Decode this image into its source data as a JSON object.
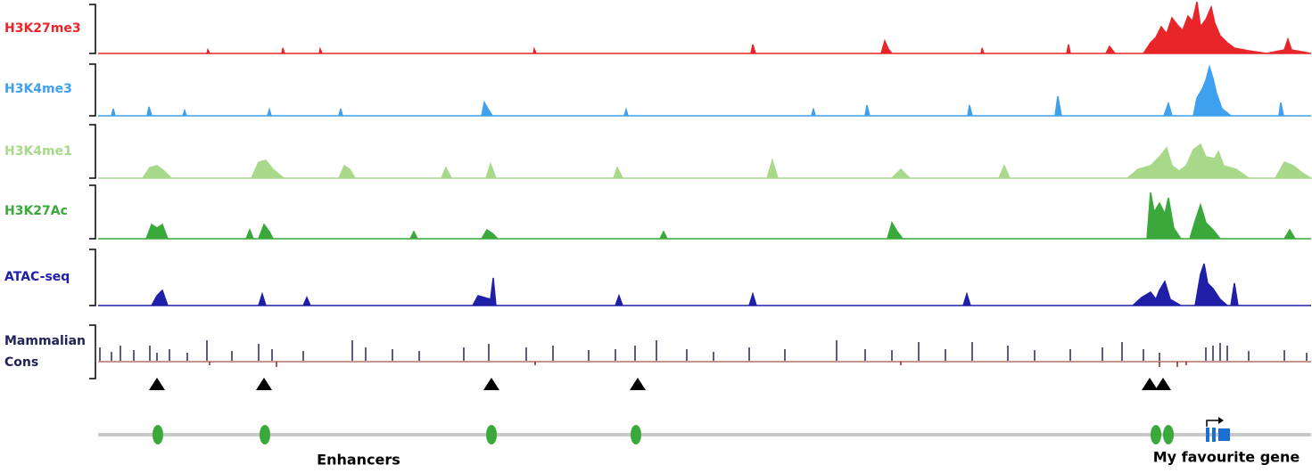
{
  "tracks": [
    {
      "label": "H3K27me3"
    },
    {
      "label": "H3K4me3"
    },
    {
      "label": "H3K4me1"
    },
    {
      "label": "H3K27Ac"
    },
    {
      "label": "ATAC-seq"
    },
    {
      "label": [
        "Mammalian",
        "Cons"
      ]
    }
  ],
  "annotations": {
    "enhancers": "Enhancers",
    "gene": "My favourite gene"
  }
}
